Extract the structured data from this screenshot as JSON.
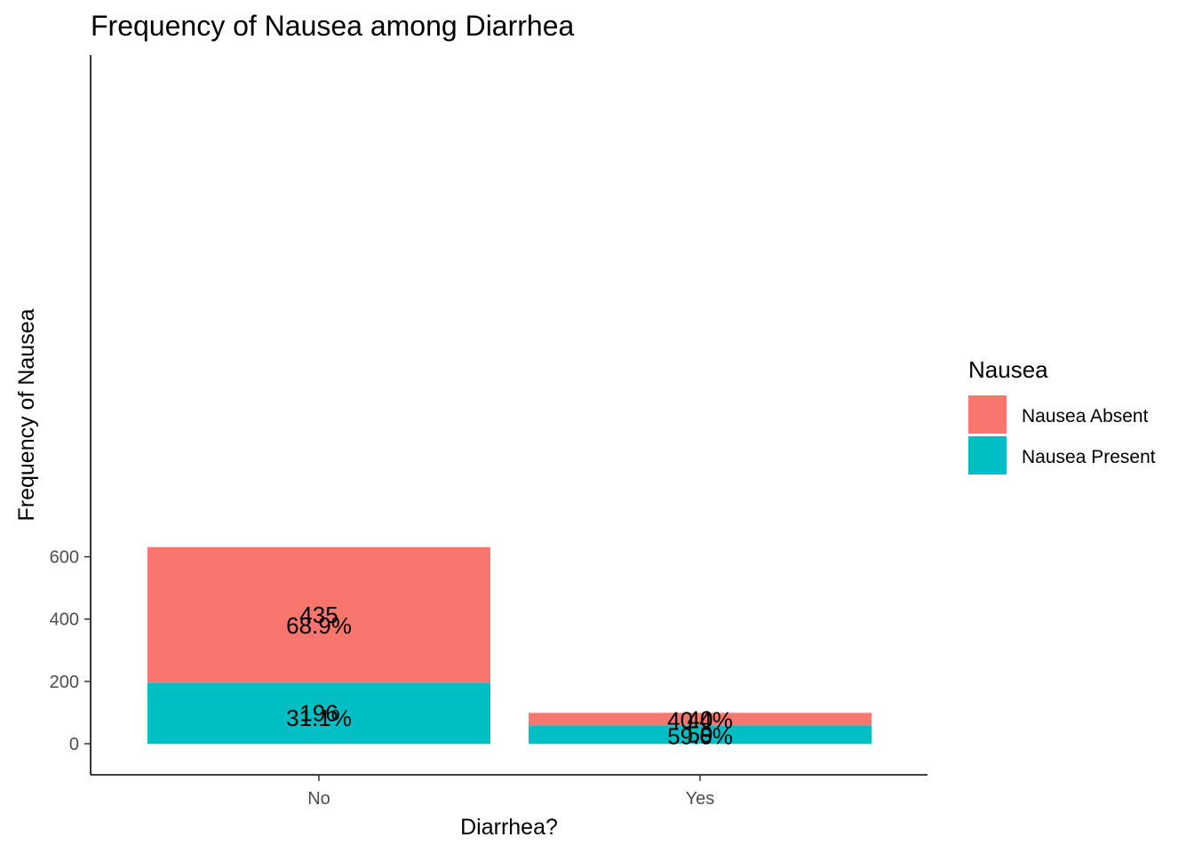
{
  "chart_data": {
    "type": "bar",
    "stacked": true,
    "title": "Frequency of Nausea among Diarrhea",
    "xlabel": "Diarrhea?",
    "ylabel": "Frequency of Nausea",
    "categories": [
      "No",
      "Yes"
    ],
    "ylim": [
      0,
      631
    ],
    "yticks": [
      0,
      200,
      400,
      600
    ],
    "series": [
      {
        "name": "Nausea Absent",
        "color": "#F8766D",
        "values": [
          435,
          40
        ],
        "percent_labels": [
          "68.9%",
          "40.4%"
        ]
      },
      {
        "name": "Nausea Present",
        "color": "#00BFC4",
        "values": [
          196,
          59
        ],
        "percent_labels": [
          "31.1%",
          "59.6%"
        ]
      }
    ],
    "legend": {
      "title": "Nausea",
      "position": "right"
    },
    "grid": false
  }
}
